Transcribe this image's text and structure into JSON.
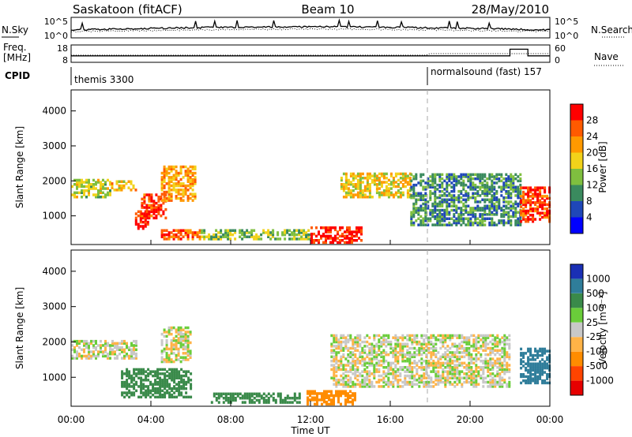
{
  "header": {
    "station": "Saskatoon (fitACF)",
    "beam": "Beam 10",
    "date": "28/May/2010"
  },
  "noise_panel": {
    "left_label": "N.Sky",
    "right_label": "N.Search",
    "left_ticks": [
      "10^5",
      "10^0"
    ],
    "right_ticks": [
      "10^5",
      "10^0"
    ]
  },
  "freq_panel": {
    "left_label_1": "Freq.",
    "left_label_2": "[MHz]",
    "left_ticks": [
      "18",
      "8"
    ],
    "right_label": "Nave",
    "right_ticks": [
      "60",
      "0"
    ]
  },
  "cpid_panel": {
    "label": "CPID",
    "programs": [
      {
        "name": "themis",
        "id": "3300"
      },
      {
        "name": "normalsound (fast)",
        "id": "157"
      }
    ]
  },
  "power_panel": {
    "ylabel": "Slant Range [km]",
    "yticks": [
      "4000",
      "3000",
      "2000",
      "1000"
    ],
    "colorbar_label": "Power [dB]",
    "colorbar_ticks": [
      "28",
      "24",
      "20",
      "16",
      "12",
      "8",
      "4"
    ],
    "colors": [
      "#0000ff",
      "#1f47b8",
      "#3a8a5e",
      "#7fbf3f",
      "#f2d21a",
      "#ff9900",
      "#ff5a00",
      "#ff0000"
    ]
  },
  "velocity_panel": {
    "ylabel": "Slant Range [km]",
    "yticks": [
      "4000",
      "3000",
      "2000",
      "1000"
    ],
    "colorbar_label": "Velocity [m s⁻¹]",
    "colorbar_ticks": [
      "1000",
      "500",
      "100",
      "25",
      "-25",
      "-100",
      "-500",
      "-1000"
    ],
    "colors": [
      "#1a2fb5",
      "#2f7d9a",
      "#3a8a4a",
      "#6acd3a",
      "#c8c8c8",
      "#ffb347",
      "#ff8c00",
      "#ff4400",
      "#e60000"
    ]
  },
  "xaxis": {
    "label": "Time UT",
    "ticks": [
      "00:00",
      "04:00",
      "08:00",
      "12:00",
      "16:00",
      "20:00",
      "00:00"
    ]
  },
  "chart_data": [
    {
      "type": "heatmap",
      "title": "Saskatoon (fitACF) Beam 10 28/May/2010",
      "quantity": "Power",
      "xlabel": "Time UT",
      "ylabel": "Slant Range [km]",
      "xlim": [
        0,
        24
      ],
      "ylim": [
        180,
        4600
      ],
      "colorbar_label": "Power [dB]",
      "colorbar_ticks": [
        4,
        8,
        12,
        16,
        20,
        24,
        28
      ],
      "features": [
        {
          "t_start": 0.0,
          "t_end": 2.0,
          "range_km": [
            1500,
            2000
          ],
          "power_db": 16
        },
        {
          "t_start": 2.0,
          "t_end": 3.3,
          "range_km": [
            1700,
            2000
          ],
          "power_db": 20
        },
        {
          "t_start": 3.2,
          "t_end": 3.8,
          "range_km": [
            600,
            1100
          ],
          "power_db": 30
        },
        {
          "t_start": 3.5,
          "t_end": 4.8,
          "range_km": [
            900,
            1600
          ],
          "power_db": 28
        },
        {
          "t_start": 4.5,
          "t_end": 6.2,
          "range_km": [
            1400,
            2400
          ],
          "power_db": 22
        },
        {
          "t_start": 4.5,
          "t_end": 6.5,
          "range_km": [
            300,
            600
          ],
          "power_db": 26
        },
        {
          "t_start": 6.5,
          "t_end": 12.0,
          "range_km": [
            300,
            600
          ],
          "power_db": 14
        },
        {
          "t_start": 12.0,
          "t_end": 14.5,
          "range_km": [
            200,
            650
          ],
          "power_db": 30
        },
        {
          "t_start": 13.5,
          "t_end": 17.0,
          "range_km": [
            1500,
            2200
          ],
          "power_db": 18
        },
        {
          "t_start": 17.0,
          "t_end": 22.5,
          "range_km": [
            700,
            2200
          ],
          "power_db": 10
        },
        {
          "t_start": 22.5,
          "t_end": 24.0,
          "range_km": [
            800,
            1800
          ],
          "power_db": 28
        }
      ]
    },
    {
      "type": "heatmap",
      "title": "Saskatoon (fitACF) Beam 10 28/May/2010",
      "quantity": "Velocity",
      "xlabel": "Time UT",
      "ylabel": "Slant Range [km]",
      "xlim": [
        0,
        24
      ],
      "ylim": [
        180,
        4600
      ],
      "colorbar_label": "Velocity [m s-1]",
      "colorbar_ticks": [
        1000,
        500,
        100,
        25,
        -25,
        -100,
        -500,
        -1000
      ],
      "features": [
        {
          "t_start": 0.0,
          "t_end": 3.3,
          "range_km": [
            1500,
            2000
          ],
          "velocity_ms": 0
        },
        {
          "t_start": 2.5,
          "t_end": 6.0,
          "range_km": [
            400,
            1200
          ],
          "velocity_ms": 150
        },
        {
          "t_start": 4.5,
          "t_end": 6.0,
          "range_km": [
            1400,
            2400
          ],
          "velocity_ms": 0
        },
        {
          "t_start": 7.0,
          "t_end": 11.5,
          "range_km": [
            250,
            500
          ],
          "velocity_ms": 200
        },
        {
          "t_start": 11.8,
          "t_end": 14.2,
          "range_km": [
            200,
            600
          ],
          "velocity_ms": -150
        },
        {
          "t_start": 13.0,
          "t_end": 22.0,
          "range_km": [
            700,
            2200
          ],
          "velocity_ms": 0
        },
        {
          "t_start": 22.5,
          "t_end": 24.0,
          "range_km": [
            800,
            1800
          ],
          "velocity_ms": 400
        }
      ]
    },
    {
      "type": "line",
      "quantity": "Noise",
      "series": [
        {
          "name": "N.Sky"
        },
        {
          "name": "N.Search"
        }
      ]
    },
    {
      "type": "line",
      "quantity": "Frequency / Nave",
      "series": [
        {
          "name": "Freq.",
          "x": [
            0,
            22.0,
            22.0,
            22.9,
            22.9,
            24
          ],
          "y": [
            11,
            11,
            17,
            17,
            11,
            11
          ]
        },
        {
          "name": "Nave"
        }
      ]
    }
  ]
}
